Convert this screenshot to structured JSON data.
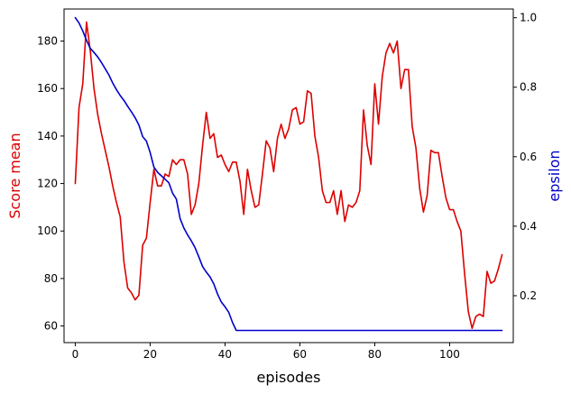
{
  "chart_data": {
    "type": "line",
    "xlabel": "episodes",
    "ylabel_left": "Score mean",
    "ylabel_right": "epsilon",
    "xlim": [
      -3,
      117
    ],
    "ylim_left": [
      53,
      193.5
    ],
    "ylim_right": [
      0.065,
      1.025
    ],
    "xticks": [
      0,
      20,
      40,
      60,
      80,
      100
    ],
    "yticks_left": [
      60,
      80,
      100,
      120,
      140,
      160,
      180
    ],
    "yticks_right": [
      0.2,
      0.4,
      0.6,
      0.8,
      1.0
    ],
    "colors": {
      "score": "#dd0000",
      "epsilon": "#0000cc",
      "left_label": "#dd0000",
      "right_label": "#0000cc"
    },
    "grid": false,
    "series": [
      {
        "axis": "left",
        "color": "#dd0000",
        "x": [
          0,
          1,
          2,
          3,
          4,
          5,
          6,
          7,
          8,
          9,
          10,
          11,
          12,
          13,
          14,
          15,
          16,
          17,
          18,
          19,
          20,
          21,
          22,
          23,
          24,
          25,
          26,
          27,
          28,
          29,
          30,
          31,
          32,
          33,
          34,
          35,
          36,
          37,
          38,
          39,
          40,
          41,
          42,
          43,
          44,
          45,
          46,
          47,
          48,
          49,
          50,
          51,
          52,
          53,
          54,
          55,
          56,
          57,
          58,
          59,
          60,
          61,
          62,
          63,
          64,
          65,
          66,
          67,
          68,
          69,
          70,
          71,
          72,
          73,
          74,
          75,
          76,
          77,
          78,
          79,
          80,
          81,
          82,
          83,
          84,
          85,
          86,
          87,
          88,
          89,
          90,
          91,
          92,
          93,
          94,
          95,
          96,
          97,
          98,
          99,
          100,
          101,
          102,
          103,
          104,
          105,
          106,
          107,
          108,
          109,
          110,
          111,
          112,
          113,
          114
        ],
        "values": [
          120,
          152,
          162,
          188,
          176,
          160,
          149,
          141,
          134,
          127,
          119,
          112,
          106,
          87,
          76,
          74,
          71,
          73,
          94,
          97,
          112,
          126,
          119,
          119,
          124,
          123,
          130,
          128,
          130,
          130,
          124,
          107,
          111,
          120,
          136,
          150,
          139,
          141,
          131,
          132,
          128,
          125,
          129,
          129,
          121,
          107,
          126,
          117,
          110,
          111,
          124,
          138,
          135,
          125,
          139,
          145,
          139,
          143,
          151,
          152,
          145,
          146,
          159,
          158,
          140,
          131,
          117,
          112,
          112,
          117,
          107,
          117,
          104,
          111,
          110,
          112,
          117,
          151,
          136,
          128,
          162,
          145,
          165,
          175,
          179,
          175,
          180,
          160,
          168,
          168,
          144,
          135,
          118,
          108,
          115,
          134,
          133,
          133,
          123,
          114,
          109,
          109,
          104,
          100,
          82,
          66,
          59,
          64,
          65,
          64,
          83,
          78,
          79,
          84,
          90
        ]
      },
      {
        "axis": "right",
        "color": "#0000cc",
        "x": [
          0,
          1,
          2,
          3,
          4,
          5,
          6,
          7,
          8,
          9,
          10,
          11,
          12,
          13,
          14,
          15,
          16,
          17,
          18,
          19,
          20,
          21,
          22,
          23,
          24,
          25,
          26,
          27,
          28,
          29,
          30,
          31,
          32,
          33,
          34,
          35,
          36,
          37,
          38,
          39,
          40,
          41,
          42,
          43,
          44,
          45,
          50,
          55,
          60,
          65,
          70,
          75,
          80,
          85,
          90,
          95,
          100,
          105,
          110,
          114
        ],
        "values": [
          1.0,
          0.985,
          0.962,
          0.935,
          0.912,
          0.9,
          0.887,
          0.871,
          0.853,
          0.835,
          0.812,
          0.793,
          0.776,
          0.762,
          0.745,
          0.729,
          0.712,
          0.691,
          0.658,
          0.645,
          0.612,
          0.57,
          0.555,
          0.545,
          0.535,
          0.525,
          0.495,
          0.478,
          0.422,
          0.395,
          0.375,
          0.358,
          0.338,
          0.312,
          0.284,
          0.268,
          0.254,
          0.234,
          0.205,
          0.182,
          0.168,
          0.152,
          0.123,
          0.1,
          0.1,
          0.1,
          0.1,
          0.1,
          0.1,
          0.1,
          0.1,
          0.1,
          0.1,
          0.1,
          0.1,
          0.1,
          0.1,
          0.1,
          0.1,
          0.1
        ]
      }
    ]
  }
}
